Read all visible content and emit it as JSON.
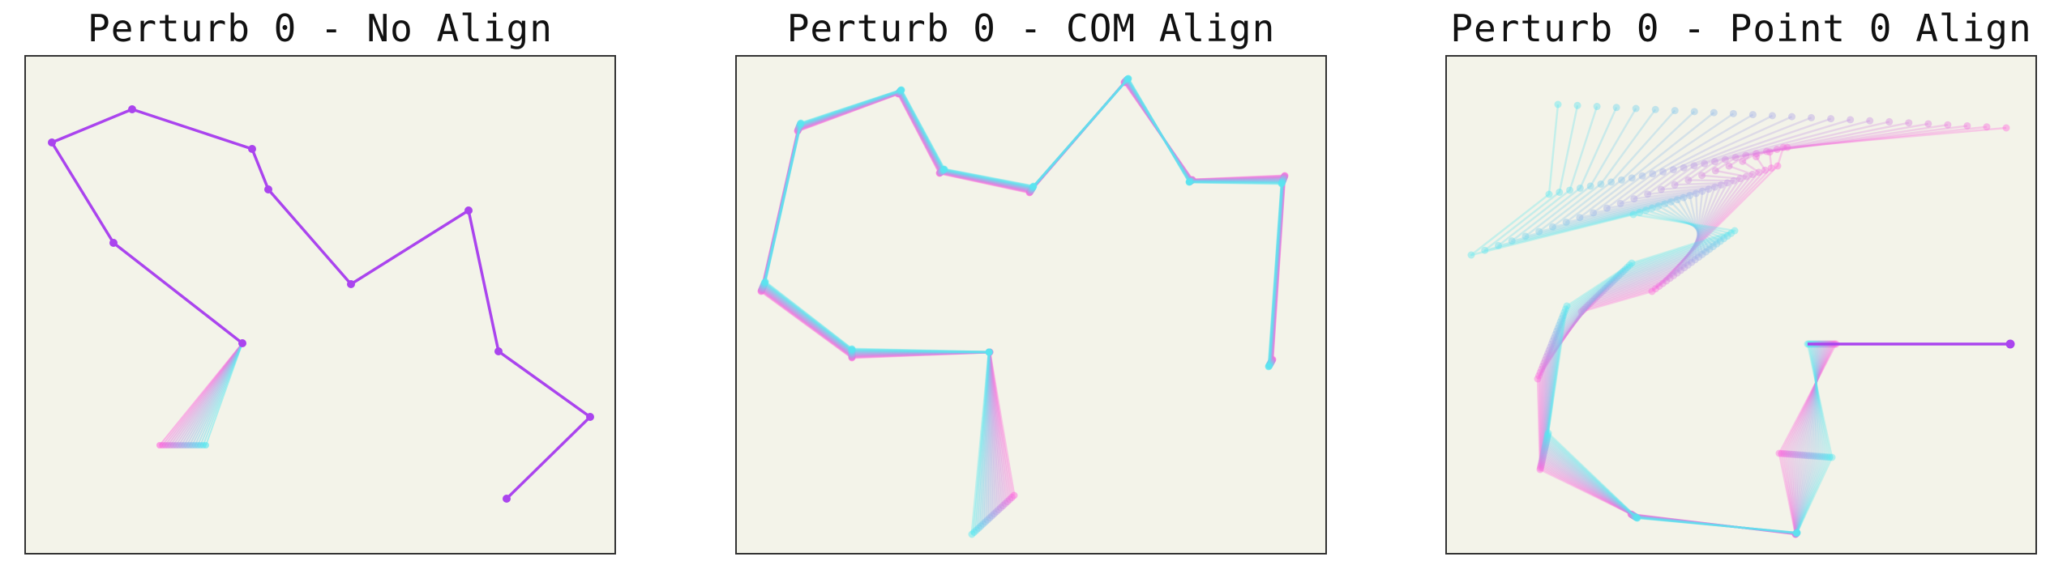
{
  "panels": [
    {
      "title": "Perturb 0 - No Align"
    },
    {
      "title": "Perturb 0 - COM Align"
    },
    {
      "title": "Perturb 0 - Point 0 Align"
    }
  ],
  "colors": {
    "start": "#ff66dd",
    "end": "#55e8f0",
    "main": "#aa44ee",
    "background": "#f3f3e9",
    "frame": "#333333"
  }
}
